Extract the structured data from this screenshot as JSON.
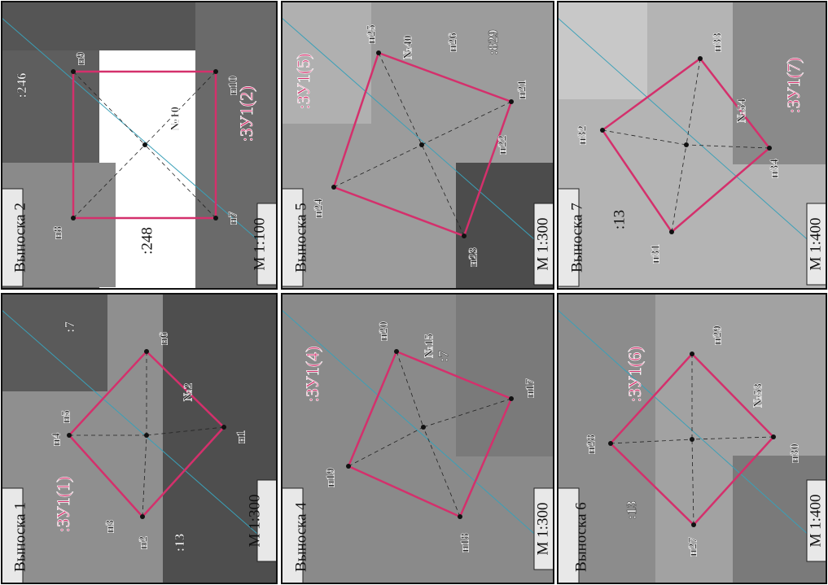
{
  "panels": [
    {
      "title": "Выноска 2",
      "scale": "М 1:100",
      "parcel": ":ЗУ1(2)",
      "labels": [
        "н9",
        "н10",
        "н7",
        "н8",
        ":246",
        ":248",
        "№10"
      ]
    },
    {
      "title": "Выноска 5",
      "scale": "М 1:300",
      "parcel": ":ЗУ1(5)",
      "labels": [
        "н25",
        "№40",
        "н26",
        ":829",
        "н21",
        "н22",
        "н23",
        "н24"
      ]
    },
    {
      "title": "Выноска 7",
      "scale": "М 1:400",
      "parcel": ":ЗУ1(7)",
      "labels": [
        "н33",
        "н32",
        "№54",
        "н34",
        ":13",
        "н31"
      ]
    },
    {
      "title": "Выноска 1",
      "scale": "М 1:300",
      "parcel": ":ЗУ1(1)",
      "labels": [
        ":7",
        "н6",
        "н4",
        "н5",
        "№2",
        "н1",
        "н3",
        "н2",
        ":13"
      ]
    },
    {
      "title": "Выноска 4",
      "scale": "М 1:300",
      "parcel": ":ЗУ1(4)",
      "labels": [
        "н20",
        "№15",
        ":7",
        "н17",
        "н19",
        "н18"
      ]
    },
    {
      "title": "Выноска 6",
      "scale": "М 1:400",
      "parcel": ":ЗУ1(6)",
      "labels": [
        "н29",
        "№53",
        "н28",
        "н30",
        ":13",
        "н27"
      ]
    }
  ]
}
